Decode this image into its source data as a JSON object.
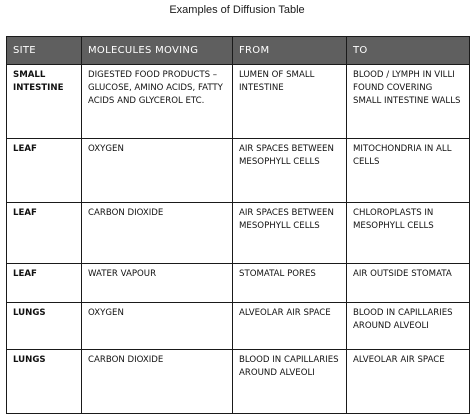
{
  "title": "Examples of Diffusion Table",
  "table": {
    "headers": [
      "SITE",
      "MOLECULES MOVING",
      "FROM",
      "TO"
    ],
    "rows": [
      {
        "site": "SMALL INTESTINE",
        "molecules": "DIGESTED FOOD PRODUCTS – GLUCOSE, AMINO ACIDS, FATTY ACIDS AND GLYCEROL ETC.",
        "from": "LUMEN OF SMALL INTESTINE",
        "to": "BLOOD / LYMPH IN VILLI FOUND COVERING SMALL INTESTINE WALLS"
      },
      {
        "site": "LEAF",
        "molecules": "OXYGEN",
        "from": "AIR SPACES BETWEEN MESOPHYLL CELLS",
        "to": "MITOCHONDRIA IN ALL CELLS"
      },
      {
        "site": "LEAF",
        "molecules": "CARBON DIOXIDE",
        "from": "AIR SPACES BETWEEN MESOPHYLL CELLS",
        "to": "CHLOROPLASTS IN MESOPHYLL CELLS"
      },
      {
        "site": "LEAF",
        "molecules": "WATER VAPOUR",
        "from": "STOMATAL PORES",
        "to": "AIR OUTSIDE STOMATA"
      },
      {
        "site": "LUNGS",
        "molecules": "OXYGEN",
        "from": "ALVEOLAR AIR SPACE",
        "to": "BLOOD IN CAPILLARIES AROUND ALVEOLI"
      },
      {
        "site": "LUNGS",
        "molecules": "CARBON DIOXIDE",
        "from": "BLOOD IN CAPILLARIES AROUND ALVEOLI",
        "to": "ALVEOLAR AIR SPACE"
      }
    ]
  },
  "colors": {
    "header_background": "#5f5f5f",
    "header_text": "#ffffff",
    "border": "#1a1a1a"
  }
}
